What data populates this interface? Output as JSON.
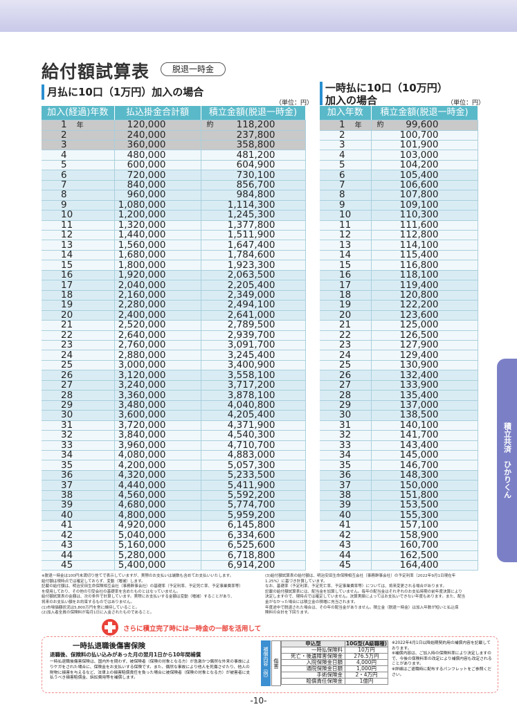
{
  "header": {
    "title": "給付額試算表",
    "badge": "脱退一時金"
  },
  "monthly": {
    "heading": "月払に10口（1万円）加入の場合",
    "unit": "（単位：円）",
    "columns": [
      "加入(経過)年数",
      "払込掛金合計額",
      "積立金額(脱退一時金)"
    ],
    "year_unit": "年",
    "approx_mark": "約",
    "rows": [
      [
        "1",
        "120,000",
        "118,200"
      ],
      [
        "2",
        "240,000",
        "237,800"
      ],
      [
        "3",
        "360,000",
        "358,800"
      ],
      [
        "4",
        "480,000",
        "481,200"
      ],
      [
        "5",
        "600,000",
        "604,900"
      ],
      [
        "6",
        "720,000",
        "730,100"
      ],
      [
        "7",
        "840,000",
        "856,700"
      ],
      [
        "8",
        "960,000",
        "984,800"
      ],
      [
        "9",
        "1,080,000",
        "1,114,300"
      ],
      [
        "10",
        "1,200,000",
        "1,245,300"
      ],
      [
        "11",
        "1,320,000",
        "1,377,800"
      ],
      [
        "12",
        "1,440,000",
        "1,511,900"
      ],
      [
        "13",
        "1,560,000",
        "1,647,400"
      ],
      [
        "14",
        "1,680,000",
        "1,784,600"
      ],
      [
        "15",
        "1,800,000",
        "1,923,300"
      ],
      [
        "16",
        "1,920,000",
        "2,063,500"
      ],
      [
        "17",
        "2,040,000",
        "2,205,400"
      ],
      [
        "18",
        "2,160,000",
        "2,349,000"
      ],
      [
        "19",
        "2,280,000",
        "2,494,100"
      ],
      [
        "20",
        "2,400,000",
        "2,641,000"
      ],
      [
        "21",
        "2,520,000",
        "2,789,500"
      ],
      [
        "22",
        "2,640,000",
        "2,939,700"
      ],
      [
        "23",
        "2,760,000",
        "3,091,700"
      ],
      [
        "24",
        "2,880,000",
        "3,245,400"
      ],
      [
        "25",
        "3,000,000",
        "3,400,900"
      ],
      [
        "26",
        "3,120,000",
        "3,558,100"
      ],
      [
        "27",
        "3,240,000",
        "3,717,200"
      ],
      [
        "28",
        "3,360,000",
        "3,878,100"
      ],
      [
        "29",
        "3,480,000",
        "4,040,800"
      ],
      [
        "30",
        "3,600,000",
        "4,205,400"
      ],
      [
        "31",
        "3,720,000",
        "4,371,900"
      ],
      [
        "32",
        "3,840,000",
        "4,540,300"
      ],
      [
        "33",
        "3,960,000",
        "4,710,700"
      ],
      [
        "34",
        "4,080,000",
        "4,883,000"
      ],
      [
        "35",
        "4,200,000",
        "5,057,300"
      ],
      [
        "36",
        "4,320,000",
        "5,233,500"
      ],
      [
        "37",
        "4,440,000",
        "5,411,900"
      ],
      [
        "38",
        "4,560,000",
        "5,592,200"
      ],
      [
        "39",
        "4,680,000",
        "5,774,700"
      ],
      [
        "40",
        "4,800,000",
        "5,959,200"
      ],
      [
        "41",
        "4,920,000",
        "6,145,800"
      ],
      [
        "42",
        "5,040,000",
        "6,334,600"
      ],
      [
        "43",
        "5,160,000",
        "6,525,600"
      ],
      [
        "44",
        "5,280,000",
        "6,718,800"
      ],
      [
        "45",
        "5,400,000",
        "6,914,200"
      ]
    ]
  },
  "lump_sum": {
    "heading_lines": [
      "一時払に10口（10万円）",
      "加入の場合"
    ],
    "unit": "（単位：円）",
    "columns": [
      "加入年数",
      "積立金額(脱退一時金)"
    ],
    "year_unit": "年",
    "approx_mark": "約",
    "rows": [
      [
        "1",
        "99,600"
      ],
      [
        "2",
        "100,700"
      ],
      [
        "3",
        "101,900"
      ],
      [
        "4",
        "103,000"
      ],
      [
        "5",
        "104,200"
      ],
      [
        "6",
        "105,400"
      ],
      [
        "7",
        "106,600"
      ],
      [
        "8",
        "107,800"
      ],
      [
        "9",
        "109,100"
      ],
      [
        "10",
        "110,300"
      ],
      [
        "11",
        "111,600"
      ],
      [
        "12",
        "112,800"
      ],
      [
        "13",
        "114,100"
      ],
      [
        "14",
        "115,400"
      ],
      [
        "15",
        "116,800"
      ],
      [
        "16",
        "118,100"
      ],
      [
        "17",
        "119,400"
      ],
      [
        "18",
        "120,800"
      ],
      [
        "19",
        "122,200"
      ],
      [
        "20",
        "123,600"
      ],
      [
        "21",
        "125,000"
      ],
      [
        "22",
        "126,500"
      ],
      [
        "23",
        "127,900"
      ],
      [
        "24",
        "129,400"
      ],
      [
        "25",
        "130,900"
      ],
      [
        "26",
        "132,400"
      ],
      [
        "27",
        "133,900"
      ],
      [
        "28",
        "135,400"
      ],
      [
        "29",
        "137,000"
      ],
      [
        "30",
        "138,500"
      ],
      [
        "31",
        "140,100"
      ],
      [
        "32",
        "141,700"
      ],
      [
        "33",
        "143,400"
      ],
      [
        "34",
        "145,000"
      ],
      [
        "35",
        "146,700"
      ],
      [
        "36",
        "148,300"
      ],
      [
        "37",
        "150,000"
      ],
      [
        "38",
        "151,800"
      ],
      [
        "39",
        "153,500"
      ],
      [
        "40",
        "155,300"
      ],
      [
        "41",
        "157,100"
      ],
      [
        "42",
        "158,900"
      ],
      [
        "43",
        "160,700"
      ],
      [
        "44",
        "162,500"
      ],
      [
        "45",
        "164,400"
      ]
    ]
  },
  "notes": {
    "left": [
      "※脱退一時金は100円未満切り捨てで表示していますが、実際のお支払いは端数も含めてお支払いいたします。",
      "給付額は現時点では確定しておらず、変動（増減）します。",
      "記載の給付額は、明治安田生命保険相互会社（事務幹事会社）の基礎率（予定利率、予定死亡率、予定事業費率等）",
      "を使用しており、その他の引受会社の基礎率を含めたものとはなっていません。",
      "給付額試算表の金額は、次の条件で計算しています。実際にお支払いする金額は変動（増減）することがあり、",
      "将来のお支払い額をお約束するものではありません。",
      "(1)市場価額状況は5,800万円を常に維持していること。",
      "(2)加入者全員の保険料が毎月1日に入金されたものであること。"
    ],
    "right": [
      "(3)給付額試算表の給付額は、明治安田生命保険相互会社（事務幹事会社）の予定利率（2022年9月1日現在年",
      "1.25%）に基づき計算しています。",
      "なお、基礎率（予定利率、予定死亡率、予定事業費率等）については、将来変更される場合があります。",
      "記載の給付額試算表には、配当金を加算していません。毎年の配当金はそれぞれのお支払時期の前年度決算により",
      "決定しますので、現時点では確定していません。決算実績によってはお支払いできない年度もあります。また、配当",
      "金がなかった場合には積立金の積増に充当されます。",
      "年度途中で脱退された場合は、その年の配当金がありません。積立金（脱退一時金）は加入年数が短いと払込保",
      "険料の合計を下回ります。"
    ]
  },
  "promo": "さらに積立完了時には一時金の一部を活用して",
  "insurance": {
    "title": "一時払退職後傷害保険",
    "subtitle": "退職後、保険料の払い込みがあった月の翌月1日から10年間補償",
    "description": "一時払退職後傷害保険は、国内外を問わず、被保険者（保険の対象となる方）が急激かつ偶然な外来の事故によりケガをされた場合に、保険金をお支払いする保険です。また、偶然な事故により他人を死傷させたり、他人の財物に損害を与えるなど、法律上の損害賠償責任を負った場合に被保険者（保険の対象となる方）が被害者に支払うべき損害賠償金、訴訟費用等を補償します。",
    "side_label": "補償内容（例）",
    "category": "傷害",
    "table": {
      "header": [
        "申込型",
        "10G型(A級職種)"
      ],
      "rows": [
        [
          "一時払保険料",
          "10万円"
        ],
        [
          "死亡・後遺障害保険金",
          "276.5万円"
        ],
        [
          "入院保険金日額",
          "4,000円"
        ],
        [
          "通院保険金日額",
          "1,000円"
        ],
        [
          "手術保険金",
          "2・4万円"
        ],
        [
          "賠償責任保険金",
          "1億円"
        ]
      ]
    },
    "notes": [
      "※2022年4月1日以降始期契約用の補償内容を記載しております。",
      "※補償内容は、ご加入時の保険料率により決定しますので、今後の保険料率の改定により補償内容も改定されることがあります。",
      "※詳細はご退職時に配布するパンフレットをご参照ください。"
    ]
  },
  "side_tab": "積立共済　ひかりくん",
  "page_number": "-10-"
}
